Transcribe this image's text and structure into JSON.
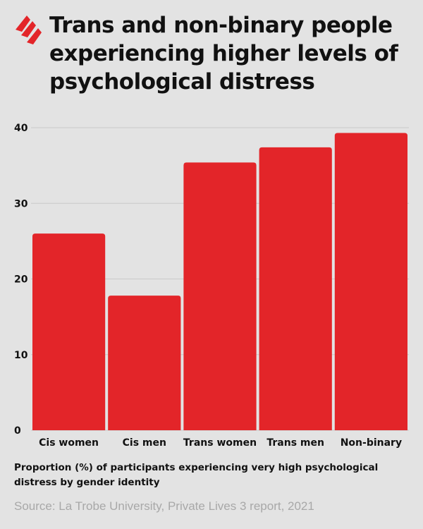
{
  "brand": {
    "logo_icon": "sbs-logo-icon",
    "accent": "#e32529"
  },
  "chart_data": {
    "type": "bar",
    "title": "Trans and non-binary people experiencing higher levels of psychological distress",
    "categories": [
      "Cis women",
      "Cis men",
      "Trans women",
      "Trans men",
      "Non-binary"
    ],
    "values": [
      26,
      17.8,
      35.4,
      37.4,
      39.3
    ],
    "y_ticks": [
      "0",
      "10",
      "20",
      "30",
      "40"
    ],
    "ylim": [
      0,
      40
    ],
    "grid": true,
    "bar_color": "#e32529",
    "caption": "Proportion (%) of participants experiencing very high psychological distress by gender identity",
    "source": "Source: La Trobe University, Private Lives 3 report, 2021"
  }
}
